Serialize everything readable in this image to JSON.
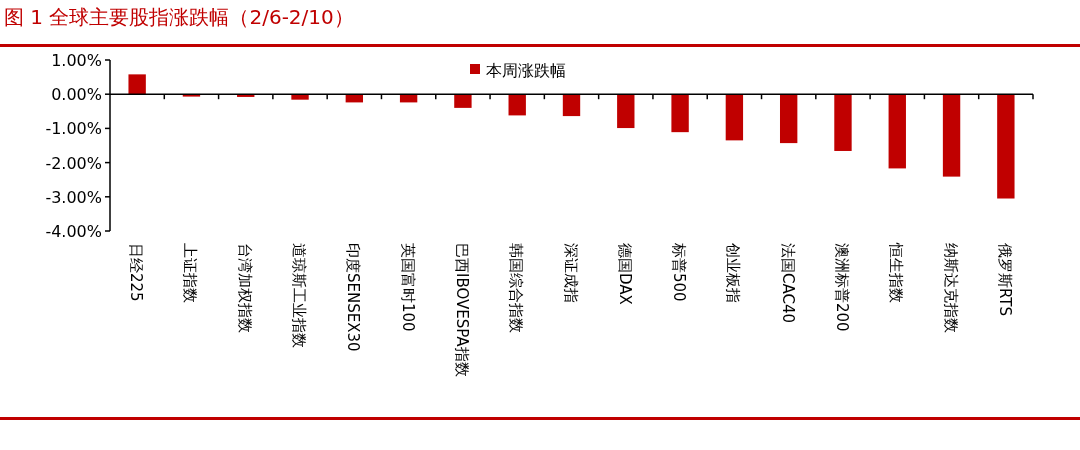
{
  "chart_data": {
    "type": "bar",
    "title": "图 1  全球主要股指涨跌幅（2/6-2/10）",
    "categories": [
      "日经225",
      "上证指数",
      "台湾加权指数",
      "道琼斯工业指数",
      "印度SENSEX30",
      "英国富时100",
      "巴西IBOVESPA指数",
      "韩国综合指数",
      "深证成指",
      "德国DAX",
      "标普500",
      "创业板指",
      "法国CAC40",
      "澳洲标普200",
      "恒生指数",
      "纳斯达克指数",
      "俄罗斯RTS"
    ],
    "series": [
      {
        "name": "本周涨跌幅",
        "color": "#c00000",
        "values": [
          0.58,
          -0.07,
          -0.08,
          -0.16,
          -0.24,
          -0.24,
          -0.4,
          -0.62,
          -0.64,
          -0.99,
          -1.11,
          -1.35,
          -1.43,
          -1.66,
          -2.17,
          -2.41,
          -3.05
        ]
      }
    ],
    "ylim": [
      -4,
      1
    ],
    "yticks": [
      {
        "value": 1,
        "label": "1.00%"
      },
      {
        "value": 0,
        "label": "0.00%"
      },
      {
        "value": -1,
        "label": "-1.00%"
      },
      {
        "value": -2,
        "label": "-2.00%"
      },
      {
        "value": -3,
        "label": "-3.00%"
      },
      {
        "value": -4,
        "label": "-4.00%"
      }
    ],
    "legend": "top"
  }
}
